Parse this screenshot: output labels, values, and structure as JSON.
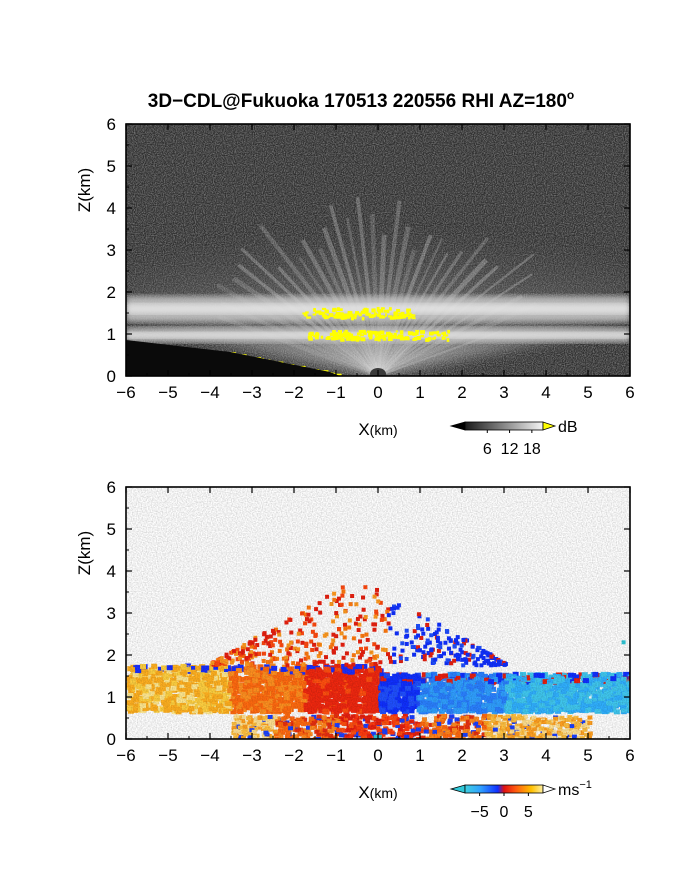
{
  "title": "3D−CDL@Fukuoka 170513 220556 RHI AZ=180",
  "title_superscript": "o",
  "chart_data": [
    {
      "type": "heatmap",
      "panel": "reflectivity",
      "xlabel_main": "X",
      "xlabel_unit": "(km)",
      "ylabel": "Z(km)",
      "xlim": [
        -6,
        6
      ],
      "ylim": [
        0,
        6
      ],
      "xticks": [
        "−6",
        "−5",
        "−4",
        "−3",
        "−2",
        "−1",
        "0",
        "1",
        "2",
        "3",
        "4",
        "5",
        "6"
      ],
      "yticks": [
        "0",
        "1",
        "2",
        "3",
        "4",
        "5",
        "6"
      ],
      "layers": [
        {
          "z_bottom": 1.3,
          "z_top": 1.9,
          "level": "bright",
          "x_range": [
            -6,
            6
          ]
        },
        {
          "z_bottom": 0.8,
          "z_top": 1.15,
          "level": "bright",
          "x_range": [
            -6,
            6
          ]
        }
      ],
      "saturated_regions": [
        {
          "x_range": [
            -1.8,
            0.8
          ],
          "z_range": [
            1.4,
            1.65
          ]
        },
        {
          "x_range": [
            -1.7,
            1.7
          ],
          "z_range": [
            0.9,
            1.1
          ]
        },
        {
          "x_range": [
            -3.5,
            -1.0
          ],
          "z_range": [
            0.0,
            0.5
          ]
        }
      ],
      "colorbar": {
        "colormap": "gray",
        "unit": "dB",
        "ticks": [
          "6",
          "12",
          "18"
        ],
        "tick_values": [
          6,
          12,
          18
        ],
        "range": [
          0,
          21
        ],
        "over_color": "#ffff00",
        "under_color": "#000000"
      }
    },
    {
      "type": "heatmap",
      "panel": "doppler_velocity",
      "xlabel_main": "X",
      "xlabel_unit": "(km)",
      "ylabel": "Z(km)",
      "xlim": [
        -6,
        6
      ],
      "ylim": [
        0,
        6
      ],
      "xticks": [
        "−6",
        "−5",
        "−4",
        "−3",
        "−2",
        "−1",
        "0",
        "1",
        "2",
        "3",
        "4",
        "5",
        "6"
      ],
      "yticks": [
        "0",
        "1",
        "2",
        "3",
        "4",
        "5",
        "6"
      ],
      "regions": [
        {
          "x_range": [
            -6,
            0
          ],
          "z_range": [
            0.7,
            1.8
          ],
          "velocity": "positive"
        },
        {
          "x_range": [
            0,
            6
          ],
          "z_range": [
            0.7,
            1.6
          ],
          "velocity": "negative"
        },
        {
          "x_range": [
            -3.5,
            5.0
          ],
          "z_range": [
            0.0,
            0.6
          ],
          "velocity": "positive"
        },
        {
          "x_range": [
            -4.0,
            3.0
          ],
          "z_range": [
            1.8,
            3.9
          ],
          "velocity": "mixed"
        }
      ],
      "colorbar": {
        "colormap": "velocity",
        "unit": "ms",
        "unit_superscript": "−1",
        "ticks": [
          "−5",
          "0",
          "5"
        ],
        "tick_values": [
          -5,
          0,
          5
        ],
        "range": [
          -8,
          8
        ],
        "over_color": "#ffffff",
        "under_color": "#30c8d8"
      }
    }
  ]
}
